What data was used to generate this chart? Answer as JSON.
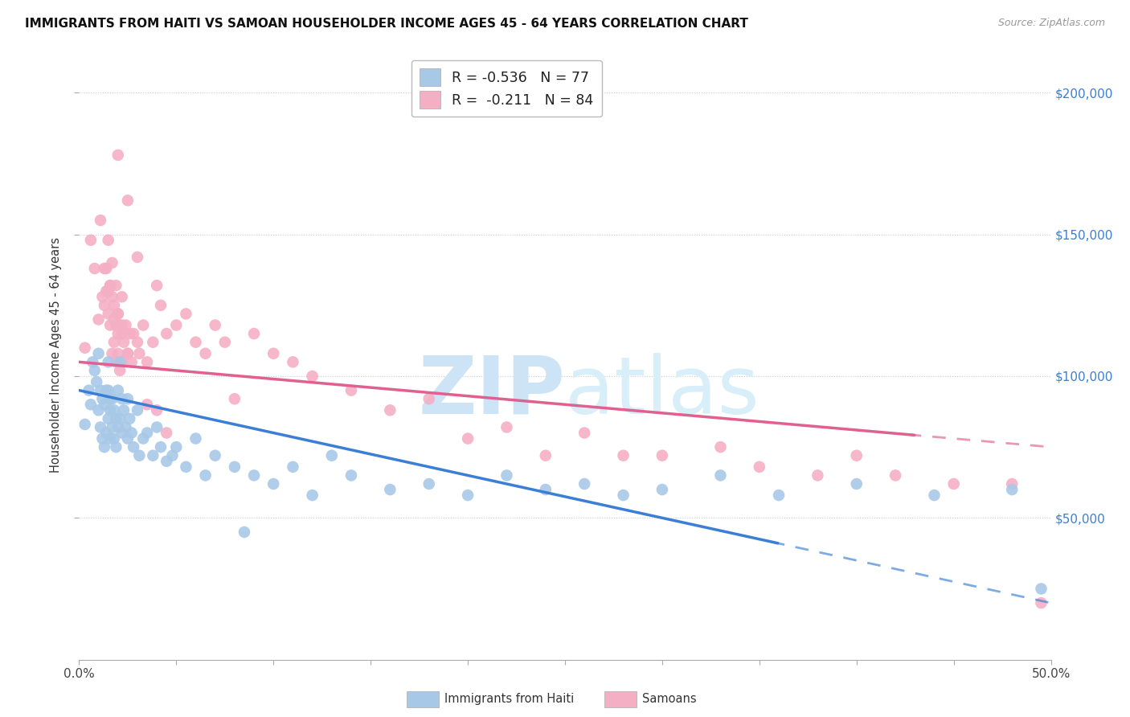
{
  "title": "IMMIGRANTS FROM HAITI VS SAMOAN HOUSEHOLDER INCOME AGES 45 - 64 YEARS CORRELATION CHART",
  "source": "Source: ZipAtlas.com",
  "ylabel": "Householder Income Ages 45 - 64 years",
  "y_tick_values": [
    50000,
    100000,
    150000,
    200000
  ],
  "xlim": [
    0.0,
    0.5
  ],
  "ylim": [
    0,
    215000
  ],
  "legend_haiti_label": "R = -0.536   N = 77",
  "legend_samoa_label": "R =  -0.211   N = 84",
  "haiti_color": "#a8c8e8",
  "samoa_color": "#f4afc4",
  "haiti_line_color": "#3a7fd5",
  "samoa_line_color": "#e06090",
  "watermark_zip": "ZIP",
  "watermark_atlas": "atlas",
  "watermark_color": "#cce4f5",
  "haiti_scatter_x": [
    0.003,
    0.005,
    0.006,
    0.007,
    0.008,
    0.009,
    0.01,
    0.01,
    0.011,
    0.011,
    0.012,
    0.012,
    0.013,
    0.013,
    0.014,
    0.014,
    0.015,
    0.015,
    0.015,
    0.016,
    0.016,
    0.016,
    0.017,
    0.017,
    0.018,
    0.018,
    0.019,
    0.019,
    0.02,
    0.02,
    0.021,
    0.021,
    0.022,
    0.022,
    0.023,
    0.024,
    0.025,
    0.025,
    0.026,
    0.027,
    0.028,
    0.03,
    0.031,
    0.033,
    0.035,
    0.038,
    0.04,
    0.042,
    0.045,
    0.048,
    0.05,
    0.055,
    0.06,
    0.065,
    0.07,
    0.08,
    0.085,
    0.09,
    0.1,
    0.11,
    0.12,
    0.13,
    0.14,
    0.16,
    0.18,
    0.2,
    0.22,
    0.24,
    0.26,
    0.28,
    0.3,
    0.33,
    0.36,
    0.4,
    0.44,
    0.48,
    0.495
  ],
  "haiti_scatter_y": [
    83000,
    95000,
    90000,
    105000,
    102000,
    98000,
    108000,
    88000,
    95000,
    82000,
    92000,
    78000,
    90000,
    75000,
    95000,
    80000,
    105000,
    95000,
    85000,
    92000,
    88000,
    78000,
    92000,
    82000,
    88000,
    78000,
    85000,
    75000,
    95000,
    82000,
    105000,
    85000,
    92000,
    80000,
    88000,
    82000,
    78000,
    92000,
    85000,
    80000,
    75000,
    88000,
    72000,
    78000,
    80000,
    72000,
    82000,
    75000,
    70000,
    72000,
    75000,
    68000,
    78000,
    65000,
    72000,
    68000,
    45000,
    65000,
    62000,
    68000,
    58000,
    72000,
    65000,
    60000,
    62000,
    58000,
    65000,
    60000,
    62000,
    58000,
    60000,
    65000,
    58000,
    62000,
    58000,
    60000,
    25000
  ],
  "samoa_scatter_x": [
    0.003,
    0.006,
    0.008,
    0.01,
    0.011,
    0.012,
    0.013,
    0.013,
    0.014,
    0.015,
    0.015,
    0.016,
    0.016,
    0.017,
    0.017,
    0.018,
    0.018,
    0.019,
    0.019,
    0.02,
    0.02,
    0.021,
    0.021,
    0.022,
    0.022,
    0.023,
    0.024,
    0.025,
    0.026,
    0.027,
    0.028,
    0.03,
    0.031,
    0.033,
    0.035,
    0.038,
    0.04,
    0.042,
    0.045,
    0.05,
    0.055,
    0.06,
    0.065,
    0.07,
    0.075,
    0.08,
    0.09,
    0.1,
    0.11,
    0.12,
    0.14,
    0.16,
    0.18,
    0.2,
    0.22,
    0.24,
    0.26,
    0.28,
    0.3,
    0.33,
    0.35,
    0.38,
    0.4,
    0.42,
    0.45,
    0.48,
    0.495,
    0.02,
    0.025,
    0.03,
    0.015,
    0.02,
    0.017,
    0.019,
    0.022,
    0.035,
    0.04,
    0.045,
    0.022,
    0.018,
    0.016,
    0.014,
    0.02,
    0.025
  ],
  "samoa_scatter_y": [
    110000,
    148000,
    138000,
    120000,
    155000,
    128000,
    138000,
    125000,
    130000,
    148000,
    122000,
    132000,
    118000,
    128000,
    108000,
    120000,
    112000,
    118000,
    105000,
    122000,
    108000,
    118000,
    102000,
    128000,
    115000,
    112000,
    118000,
    108000,
    115000,
    105000,
    115000,
    112000,
    108000,
    118000,
    105000,
    112000,
    132000,
    125000,
    115000,
    118000,
    122000,
    112000,
    108000,
    118000,
    112000,
    92000,
    115000,
    108000,
    105000,
    100000,
    95000,
    88000,
    92000,
    78000,
    82000,
    72000,
    80000,
    72000,
    72000,
    75000,
    68000,
    65000,
    72000,
    65000,
    62000,
    62000,
    20000,
    178000,
    162000,
    142000,
    130000,
    122000,
    140000,
    132000,
    105000,
    90000,
    88000,
    80000,
    118000,
    125000,
    132000,
    138000,
    115000,
    108000
  ]
}
